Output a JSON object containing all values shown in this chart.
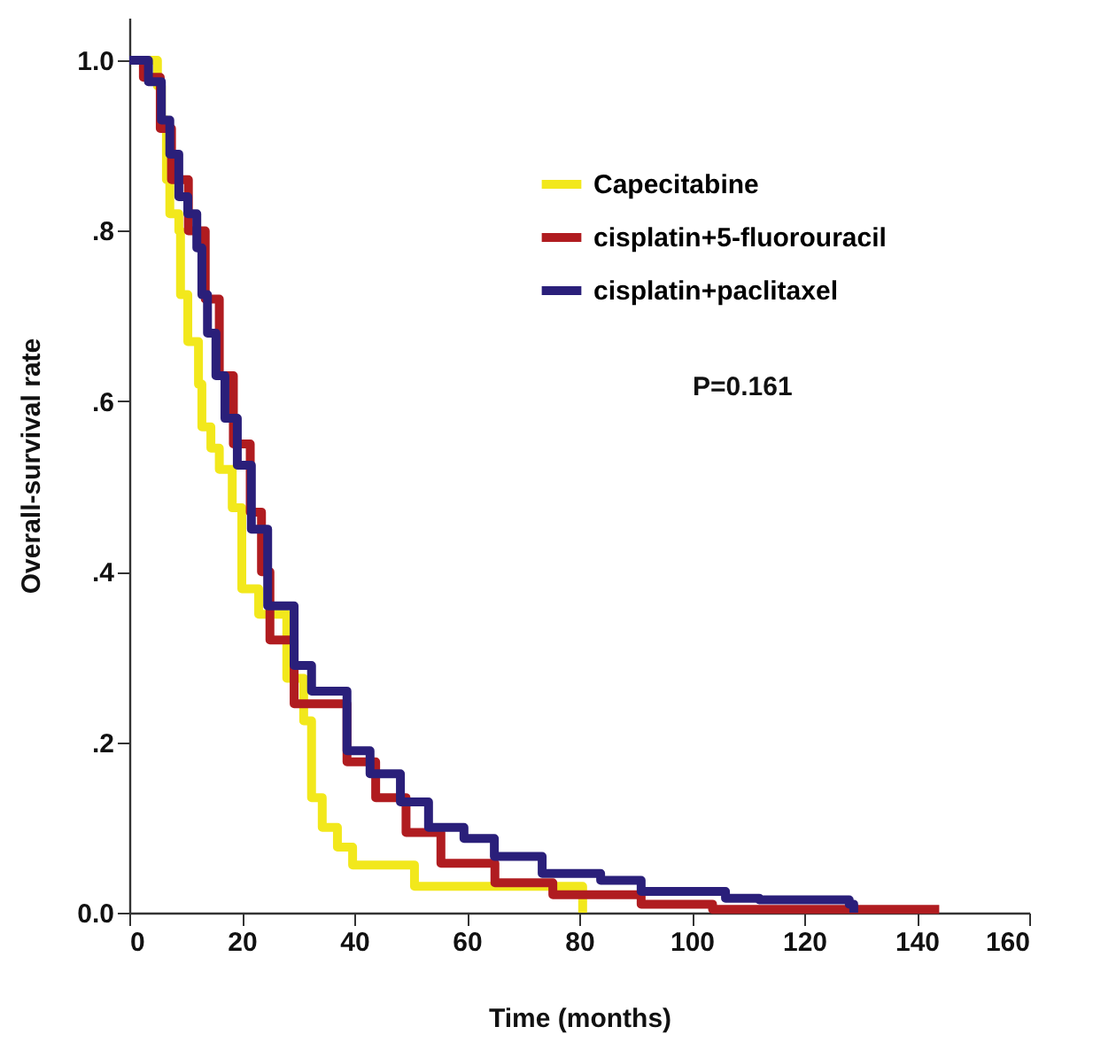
{
  "chart_data": {
    "type": "step",
    "xlabel": "Time (months)",
    "ylabel": "Overall-survival rate",
    "xlim": [
      0,
      160
    ],
    "ylim": [
      0,
      1.05
    ],
    "xticks": [
      0,
      20,
      40,
      60,
      80,
      100,
      120,
      140,
      160
    ],
    "yticks": [
      {
        "value": 0,
        "label": "0.0"
      },
      {
        "value": 0.2,
        "label": ".2"
      },
      {
        "value": 0.4,
        "label": ".4"
      },
      {
        "value": 0.6,
        "label": ".6"
      },
      {
        "value": 0.8,
        "label": ".8"
      },
      {
        "value": 1.0,
        "label": "1.0"
      }
    ],
    "grid": false,
    "legend": "top right",
    "line_style": "solid",
    "marker": "none",
    "annotations": [
      "P=0.161"
    ],
    "series": [
      {
        "name": "Capecitabine",
        "color": "#f2e81c",
        "x": [
          0,
          3.5,
          5,
          5.7,
          6.6,
          7.2,
          8.8,
          9.1,
          10.4,
          12.3,
          12.9,
          14.5,
          16,
          18.3,
          20,
          23,
          28,
          31,
          32.4,
          34.3,
          37,
          39.7,
          50,
          50.7,
          80.6
        ],
        "values": [
          1.0,
          1.0,
          0.97,
          0.93,
          0.86,
          0.82,
          0.8,
          0.725,
          0.67,
          0.62,
          0.57,
          0.545,
          0.52,
          0.475,
          0.38,
          0.35,
          0.275,
          0.225,
          0.135,
          0.1,
          0.077,
          0.056,
          0.056,
          0.031,
          0.0
        ]
      },
      {
        "name": "cisplatin+5-fluorouracil",
        "color": "#b01c20",
        "x": [
          0,
          2.5,
          5.5,
          7.5,
          10.5,
          13.5,
          16,
          18.5,
          21.5,
          23.5,
          25,
          29.3,
          38.7,
          43.8,
          49.2,
          55.4,
          65,
          75.3,
          91,
          103.7,
          144
        ],
        "values": [
          1.0,
          0.98,
          0.92,
          0.86,
          0.8,
          0.72,
          0.63,
          0.55,
          0.47,
          0.4,
          0.32,
          0.245,
          0.177,
          0.135,
          0.094,
          0.058,
          0.035,
          0.021,
          0.01,
          0.004,
          0.004
        ]
      },
      {
        "name": "cisplatin+paclitaxel",
        "color": "#2a1f7a",
        "x": [
          0,
          1.3,
          3.4,
          5.7,
          7.2,
          8.8,
          10.4,
          12,
          12.9,
          13.9,
          15.4,
          17,
          19.2,
          21.7,
          24.6,
          29.3,
          32.4,
          38.7,
          42.8,
          48.2,
          53.2,
          59.5,
          64.9,
          73.4,
          83.8,
          91,
          106,
          112,
          128,
          128.8
        ],
        "values": [
          1.0,
          1.0,
          0.975,
          0.93,
          0.89,
          0.84,
          0.82,
          0.78,
          0.725,
          0.68,
          0.63,
          0.58,
          0.525,
          0.45,
          0.36,
          0.29,
          0.26,
          0.19,
          0.163,
          0.13,
          0.1,
          0.087,
          0.066,
          0.046,
          0.038,
          0.025,
          0.017,
          0.015,
          0.01,
          0.0
        ]
      }
    ]
  }
}
